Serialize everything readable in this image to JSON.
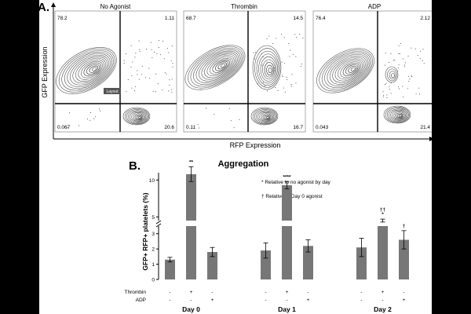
{
  "panel_a": {
    "label": "A.",
    "y_axis_label": "GFP Expression",
    "x_axis_label": "RFP Expression",
    "layout_tag": "Layout",
    "plots": [
      {
        "title": "No Agonist",
        "q_top_left": "78.2",
        "q_top_right": "1.11",
        "q_bottom_left": "0.067",
        "q_bottom_right": "20.6"
      },
      {
        "title": "Thrombin",
        "q_top_left": "68.7",
        "q_top_right": "14.5",
        "q_bottom_left": "0.11",
        "q_bottom_right": "16.7"
      },
      {
        "title": "ADP",
        "q_top_left": "76.4",
        "q_top_right": "2.12",
        "q_bottom_left": "0.043",
        "q_bottom_right": "21.4"
      }
    ]
  },
  "panel_b": {
    "label": "B.",
    "legend": {
      "star": "* Relative to no agonist by day",
      "dagger": "† Relative to Day 0 agonist"
    },
    "row_labels": {
      "thrombin": "Thrombin",
      "adp": "ADP"
    }
  },
  "chart_data": {
    "type": "bar",
    "title": "Aggregation",
    "ylabel": "GFP+ RFP+ platelets (%)",
    "y_break": [
      3.5,
      4.5
    ],
    "ylim": [
      0,
      11
    ],
    "yticks_lower": [
      "0",
      "1",
      "2",
      "3"
    ],
    "yticks_upper": [
      "5",
      "10"
    ],
    "groups": [
      "Day 0",
      "Day 1",
      "Day 2"
    ],
    "bars": [
      {
        "group": "Day 0",
        "thrombin": "-",
        "adp": "-",
        "value": 1.3,
        "err": 0.15,
        "sig": ""
      },
      {
        "group": "Day 0",
        "thrombin": "+",
        "adp": "-",
        "value": 10.8,
        "err": 1.0,
        "sig": "**"
      },
      {
        "group": "Day 0",
        "thrombin": "-",
        "adp": "+",
        "value": 1.8,
        "err": 0.3,
        "sig": ""
      },
      {
        "group": "Day 1",
        "thrombin": "-",
        "adp": "-",
        "value": 1.9,
        "err": 0.5,
        "sig": ""
      },
      {
        "group": "Day 1",
        "thrombin": "+",
        "adp": "-",
        "value": 9.3,
        "err": 0.5,
        "sig": "****"
      },
      {
        "group": "Day 1",
        "thrombin": "-",
        "adp": "+",
        "value": 2.2,
        "err": 0.4,
        "sig": ""
      },
      {
        "group": "Day 2",
        "thrombin": "-",
        "adp": "-",
        "value": 2.1,
        "err": 0.6,
        "sig": ""
      },
      {
        "group": "Day 2",
        "thrombin": "+",
        "adp": "-",
        "value": 4.5,
        "err": 0.2,
        "sig": "†† *"
      },
      {
        "group": "Day 2",
        "thrombin": "-",
        "adp": "+",
        "value": 2.6,
        "err": 0.6,
        "sig": "†"
      }
    ]
  }
}
